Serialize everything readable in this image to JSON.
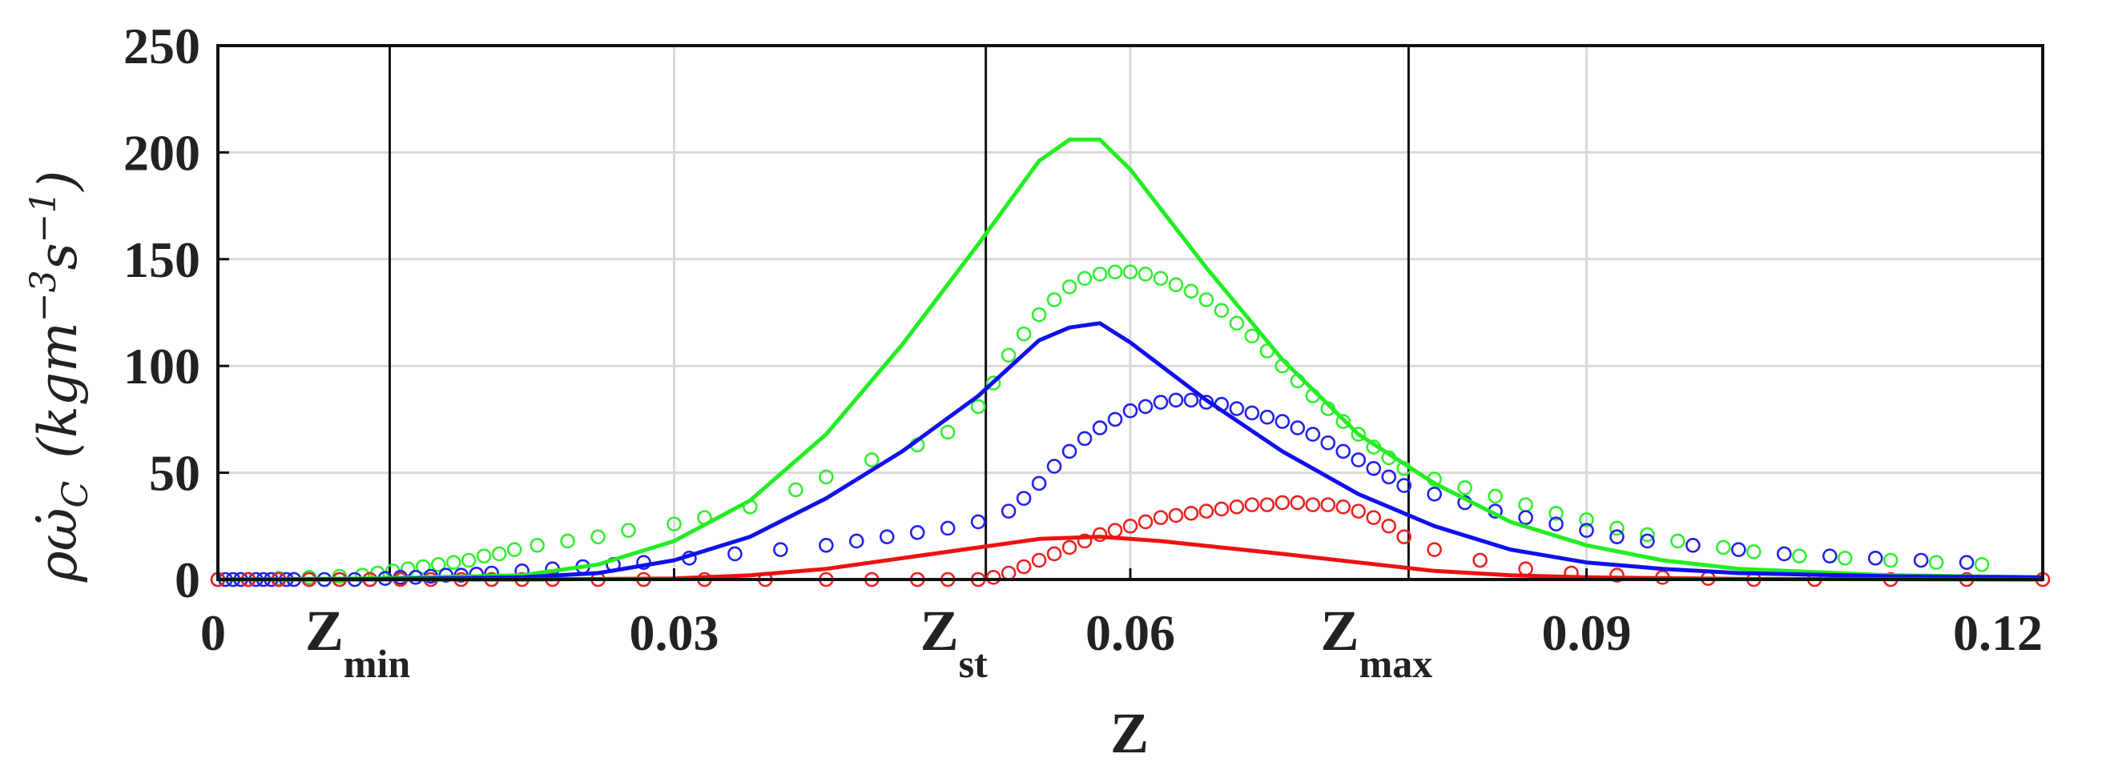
{
  "chart_data": {
    "type": "line",
    "title": "",
    "xlabel": "Z",
    "ylabel": "ρω̇_C (kgm⁻³s⁻¹)",
    "ylabel_parts": {
      "symbol": "ρω̇",
      "subscript": "C",
      "units": "(kgm",
      "exp1": "−3",
      "units2": "s",
      "exp2": "−1",
      "close": ")"
    },
    "xlim": [
      0,
      0.12
    ],
    "ylim": [
      0,
      250
    ],
    "x_ticks": [
      0,
      0.03,
      0.06,
      0.09,
      0.12
    ],
    "x_tick_labels": [
      "0",
      "0.03",
      "0.06",
      "0.09",
      "0.12"
    ],
    "y_ticks": [
      0,
      50,
      100,
      150,
      200,
      250
    ],
    "y_tick_labels": [
      "0",
      "50",
      "100",
      "150",
      "200",
      "250"
    ],
    "grid": true,
    "vertical_markers": [
      {
        "name": "Z-min",
        "x": 0.0113,
        "label_main": "Z",
        "label_sub": "min"
      },
      {
        "name": "Z-st",
        "x": 0.0505,
        "label_main": "Z",
        "label_sub": "st"
      },
      {
        "name": "Z-max",
        "x": 0.0783,
        "label_main": "Z",
        "label_sub": "max"
      }
    ],
    "series": [
      {
        "name": "green-line",
        "style": "line",
        "color": "#22ee22",
        "x": [
          0,
          0.01,
          0.02,
          0.025,
          0.03,
          0.035,
          0.04,
          0.045,
          0.05,
          0.054,
          0.056,
          0.058,
          0.06,
          0.065,
          0.07,
          0.075,
          0.08,
          0.085,
          0.09,
          0.095,
          0.1,
          0.11,
          0.12
        ],
        "y": [
          0,
          0.5,
          2,
          7,
          18,
          37,
          68,
          110,
          157,
          196,
          206,
          206,
          192,
          146,
          103,
          68,
          45,
          27,
          16,
          9,
          5,
          2,
          1
        ]
      },
      {
        "name": "blue-line",
        "style": "line",
        "color": "#1010ee",
        "x": [
          0,
          0.01,
          0.02,
          0.025,
          0.03,
          0.035,
          0.04,
          0.045,
          0.05,
          0.054,
          0.056,
          0.058,
          0.06,
          0.065,
          0.07,
          0.075,
          0.08,
          0.085,
          0.09,
          0.095,
          0.1,
          0.11,
          0.12
        ],
        "y": [
          0,
          0.2,
          1,
          3,
          9,
          20,
          38,
          60,
          86,
          112,
          118,
          120,
          111,
          84,
          60,
          40,
          25,
          14,
          8,
          5,
          3,
          1.5,
          1
        ]
      },
      {
        "name": "red-line",
        "style": "line",
        "color": "#ee1111",
        "x": [
          0,
          0.02,
          0.03,
          0.035,
          0.04,
          0.045,
          0.05,
          0.054,
          0.058,
          0.062,
          0.066,
          0.07,
          0.075,
          0.08,
          0.085,
          0.09,
          0.1,
          0.12
        ],
        "y": [
          0,
          0,
          0.5,
          2,
          5,
          10,
          15,
          19,
          20,
          18,
          15,
          12,
          8,
          4,
          2,
          1,
          0.3,
          0
        ]
      },
      {
        "name": "green-circles",
        "style": "markers",
        "color": "#33ee33",
        "x": [
          0,
          0.002,
          0.004,
          0.006,
          0.008,
          0.0095,
          0.0105,
          0.0115,
          0.0125,
          0.0135,
          0.0145,
          0.0155,
          0.0165,
          0.0175,
          0.0185,
          0.0195,
          0.021,
          0.023,
          0.025,
          0.027,
          0.03,
          0.032,
          0.035,
          0.038,
          0.04,
          0.043,
          0.046,
          0.048,
          0.05,
          0.051,
          0.052,
          0.053,
          0.054,
          0.055,
          0.056,
          0.057,
          0.058,
          0.059,
          0.06,
          0.061,
          0.062,
          0.063,
          0.064,
          0.065,
          0.066,
          0.067,
          0.068,
          0.069,
          0.07,
          0.071,
          0.072,
          0.073,
          0.074,
          0.075,
          0.076,
          0.077,
          0.078,
          0.08,
          0.082,
          0.084,
          0.086,
          0.088,
          0.09,
          0.092,
          0.094,
          0.096,
          0.099,
          0.101,
          0.104,
          0.107,
          0.11,
          0.113,
          0.116
        ],
        "y": [
          0,
          0,
          0.5,
          1,
          1.5,
          2,
          3,
          4,
          5,
          6,
          7,
          8,
          9,
          11,
          12,
          14,
          16,
          18,
          20,
          23,
          26,
          29,
          34,
          42,
          48,
          56,
          63,
          69,
          81,
          92,
          105,
          115,
          124,
          131,
          137,
          141,
          143,
          144,
          144,
          143,
          141,
          138,
          135,
          131,
          126,
          120,
          114,
          107,
          100,
          93,
          86,
          80,
          74,
          68,
          62,
          57,
          52,
          47,
          43,
          39,
          35,
          31,
          28,
          24,
          21,
          18,
          15,
          13,
          11,
          10,
          9,
          8,
          7
        ]
      },
      {
        "name": "blue-circles",
        "style": "markers",
        "color": "#2222ee",
        "x": [
          0,
          0.0005,
          0.001,
          0.0015,
          0.002,
          0.0025,
          0.003,
          0.0035,
          0.004,
          0.0045,
          0.005,
          0.006,
          0.007,
          0.008,
          0.009,
          0.01,
          0.011,
          0.012,
          0.013,
          0.014,
          0.015,
          0.016,
          0.017,
          0.018,
          0.02,
          0.022,
          0.024,
          0.026,
          0.028,
          0.031,
          0.034,
          0.037,
          0.04,
          0.042,
          0.044,
          0.046,
          0.048,
          0.05,
          0.052,
          0.053,
          0.054,
          0.055,
          0.056,
          0.057,
          0.058,
          0.059,
          0.06,
          0.061,
          0.062,
          0.063,
          0.064,
          0.065,
          0.066,
          0.067,
          0.068,
          0.069,
          0.07,
          0.071,
          0.072,
          0.073,
          0.074,
          0.075,
          0.076,
          0.077,
          0.078,
          0.08,
          0.082,
          0.084,
          0.086,
          0.088,
          0.09,
          0.092,
          0.094,
          0.097,
          0.1,
          0.103,
          0.106,
          0.109,
          0.112,
          0.115
        ],
        "y": [
          0,
          0,
          0,
          0,
          0,
          0,
          0,
          0,
          0,
          0,
          0,
          0,
          0,
          0,
          0,
          0,
          0.5,
          1,
          1,
          1.5,
          2,
          2,
          2.5,
          3,
          4,
          5,
          6,
          7,
          8,
          10,
          12,
          14,
          16,
          18,
          20,
          22,
          24,
          27,
          32,
          38,
          45,
          53,
          60,
          66,
          71,
          75,
          79,
          81,
          83,
          84,
          84,
          83,
          82,
          80,
          78,
          76,
          74,
          71,
          68,
          64,
          60,
          56,
          52,
          48,
          44,
          40,
          36,
          32,
          29,
          26,
          23,
          20,
          18,
          16,
          14,
          12,
          11,
          10,
          9,
          8
        ]
      },
      {
        "name": "red-circles",
        "style": "markers",
        "color": "#ee2222",
        "x": [
          0,
          0.002,
          0.004,
          0.006,
          0.008,
          0.01,
          0.012,
          0.014,
          0.016,
          0.018,
          0.02,
          0.022,
          0.025,
          0.028,
          0.032,
          0.036,
          0.04,
          0.043,
          0.046,
          0.048,
          0.05,
          0.051,
          0.052,
          0.053,
          0.054,
          0.055,
          0.056,
          0.057,
          0.058,
          0.059,
          0.06,
          0.061,
          0.062,
          0.063,
          0.064,
          0.065,
          0.066,
          0.067,
          0.068,
          0.069,
          0.07,
          0.071,
          0.072,
          0.073,
          0.074,
          0.075,
          0.076,
          0.077,
          0.078,
          0.08,
          0.083,
          0.086,
          0.089,
          0.092,
          0.095,
          0.098,
          0.101,
          0.105,
          0.11,
          0.115,
          0.12
        ],
        "y": [
          0,
          0,
          0,
          0,
          0,
          0,
          0,
          0,
          0,
          0,
          0,
          0,
          0,
          0,
          0,
          0,
          0,
          0,
          0,
          0,
          0,
          1,
          3,
          6,
          9,
          12,
          15,
          18,
          21,
          23,
          25,
          27,
          29,
          30,
          31,
          32,
          33,
          34,
          35,
          35,
          36,
          36,
          35,
          35,
          34,
          32,
          29,
          25,
          20,
          14,
          9,
          5,
          3,
          2,
          1,
          0.5,
          0,
          0,
          0,
          0,
          0
        ]
      }
    ]
  }
}
